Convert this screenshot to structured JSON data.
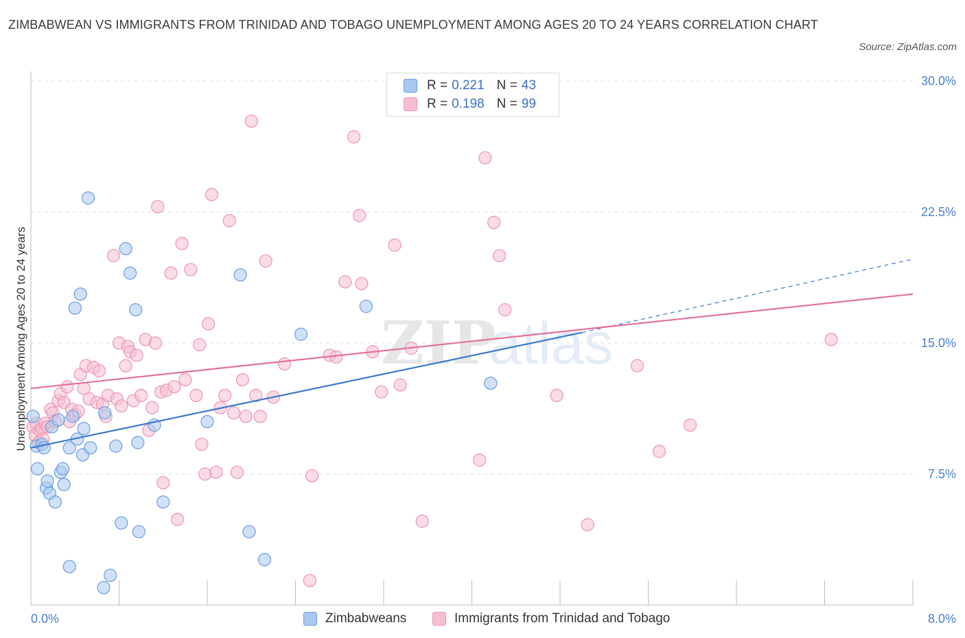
{
  "header": {
    "title": "ZIMBABWEAN VS IMMIGRANTS FROM TRINIDAD AND TOBAGO UNEMPLOYMENT AMONG AGES 20 TO 24 YEARS CORRELATION CHART",
    "source": "Source: ZipAtlas.com"
  },
  "legend": {
    "rows": [
      {
        "r_label": "R =",
        "r_value": "0.221",
        "n_label": "N =",
        "n_value": "43"
      },
      {
        "r_label": "R =",
        "r_value": "0.198",
        "n_label": "N =",
        "n_value": "99"
      }
    ],
    "bottom": [
      "Zimbabweans",
      "Immigrants from Trinidad and Tobago"
    ]
  },
  "colors": {
    "blue_fill": "#a9c8f0",
    "blue_stroke": "#6a9be0",
    "blue_line": "#3a78d0",
    "pink_fill": "#f6bfd0",
    "pink_stroke": "#ec93b2",
    "pink_line": "#e3709a",
    "accent_text": "#4a7fc8"
  },
  "chart_data": {
    "type": "scatter",
    "title": "ZIMBABWEAN VS IMMIGRANTS FROM TRINIDAD AND TOBAGO UNEMPLOYMENT AMONG AGES 20 TO 24 YEARS CORRELATION CHART",
    "xlabel": "",
    "ylabel": "Unemployment Among Ages 20 to 24 years",
    "xlim": [
      0,
      8
    ],
    "ylim": [
      0,
      30
    ],
    "x_tick_labels": [
      "0.0%",
      "8.0%"
    ],
    "y_tick_labels": [
      "7.5%",
      "15.0%",
      "22.5%",
      "30.0%"
    ],
    "y_ticks": [
      7.5,
      15,
      22.5,
      30
    ],
    "grid": true,
    "legend_placement": "top-center",
    "series": [
      {
        "name": "Zimbabweans",
        "r": 0.221,
        "n": 43,
        "trend": {
          "x0": 0,
          "y0": 9.0,
          "x1": 5.0,
          "y1": 15.6,
          "dash_to_x": 8.0,
          "dash_to_y": 19.8
        },
        "points": [
          [
            0.02,
            10.8
          ],
          [
            0.05,
            9.1
          ],
          [
            0.06,
            7.8
          ],
          [
            0.1,
            9.2
          ],
          [
            0.12,
            9.0
          ],
          [
            0.14,
            6.7
          ],
          [
            0.15,
            7.1
          ],
          [
            0.17,
            6.4
          ],
          [
            0.19,
            10.2
          ],
          [
            0.22,
            5.9
          ],
          [
            0.25,
            10.6
          ],
          [
            0.27,
            7.6
          ],
          [
            0.29,
            7.8
          ],
          [
            0.3,
            6.9
          ],
          [
            0.35,
            9.0
          ],
          [
            0.38,
            10.8
          ],
          [
            0.4,
            17.0
          ],
          [
            0.42,
            9.5
          ],
          [
            0.45,
            17.8
          ],
          [
            0.47,
            8.6
          ],
          [
            0.48,
            10.1
          ],
          [
            0.52,
            23.3
          ],
          [
            0.54,
            9.0
          ],
          [
            0.66,
            1.0
          ],
          [
            0.67,
            11.0
          ],
          [
            0.72,
            1.7
          ],
          [
            0.77,
            9.1
          ],
          [
            0.82,
            4.7
          ],
          [
            0.86,
            20.4
          ],
          [
            0.9,
            19.0
          ],
          [
            0.95,
            16.9
          ],
          [
            0.97,
            9.3
          ],
          [
            0.98,
            4.2
          ],
          [
            1.12,
            10.3
          ],
          [
            1.2,
            5.9
          ],
          [
            1.6,
            10.5
          ],
          [
            1.9,
            18.9
          ],
          [
            2.12,
            2.6
          ],
          [
            1.98,
            4.2
          ],
          [
            2.45,
            15.5
          ],
          [
            3.04,
            17.1
          ],
          [
            4.17,
            12.7
          ],
          [
            0.35,
            2.2
          ]
        ]
      },
      {
        "name": "Immigrants from Trinidad and Tobago",
        "r": 0.198,
        "n": 99,
        "trend": {
          "x0": 0,
          "y0": 12.4,
          "x1": 8.0,
          "y1": 17.8
        },
        "points": [
          [
            0.02,
            10.2
          ],
          [
            0.04,
            9.7
          ],
          [
            0.05,
            10.4
          ],
          [
            0.07,
            9.3
          ],
          [
            0.08,
            10.0
          ],
          [
            0.1,
            10.1
          ],
          [
            0.11,
            9.5
          ],
          [
            0.13,
            10.4
          ],
          [
            0.15,
            10.2
          ],
          [
            0.18,
            11.2
          ],
          [
            0.2,
            11.0
          ],
          [
            0.22,
            10.5
          ],
          [
            0.25,
            11.7
          ],
          [
            0.27,
            12.1
          ],
          [
            0.3,
            11.6
          ],
          [
            0.33,
            12.5
          ],
          [
            0.35,
            10.5
          ],
          [
            0.37,
            11.2
          ],
          [
            0.4,
            10.9
          ],
          [
            0.43,
            11.1
          ],
          [
            0.45,
            13.2
          ],
          [
            0.48,
            12.4
          ],
          [
            0.5,
            13.7
          ],
          [
            0.53,
            11.8
          ],
          [
            0.57,
            13.6
          ],
          [
            0.6,
            11.6
          ],
          [
            0.62,
            13.4
          ],
          [
            0.65,
            11.5
          ],
          [
            0.68,
            10.8
          ],
          [
            0.7,
            12.0
          ],
          [
            0.75,
            20.0
          ],
          [
            0.78,
            11.8
          ],
          [
            0.8,
            15.0
          ],
          [
            0.82,
            11.4
          ],
          [
            0.86,
            13.7
          ],
          [
            0.88,
            14.8
          ],
          [
            0.9,
            14.5
          ],
          [
            0.93,
            11.7
          ],
          [
            0.96,
            14.3
          ],
          [
            1.0,
            12.0
          ],
          [
            1.04,
            15.2
          ],
          [
            1.07,
            10.0
          ],
          [
            1.1,
            11.3
          ],
          [
            1.13,
            15.0
          ],
          [
            1.15,
            22.8
          ],
          [
            1.18,
            12.2
          ],
          [
            1.2,
            7.0
          ],
          [
            1.23,
            12.3
          ],
          [
            1.27,
            19.0
          ],
          [
            1.3,
            12.5
          ],
          [
            1.33,
            4.9
          ],
          [
            1.37,
            20.7
          ],
          [
            1.4,
            12.9
          ],
          [
            1.45,
            19.2
          ],
          [
            1.5,
            12.0
          ],
          [
            1.53,
            14.9
          ],
          [
            1.55,
            9.2
          ],
          [
            1.58,
            7.5
          ],
          [
            1.61,
            16.1
          ],
          [
            1.64,
            23.5
          ],
          [
            1.68,
            7.6
          ],
          [
            1.72,
            11.3
          ],
          [
            1.76,
            12.0
          ],
          [
            1.8,
            22.0
          ],
          [
            1.84,
            11.0
          ],
          [
            1.87,
            7.6
          ],
          [
            1.92,
            12.9
          ],
          [
            1.95,
            10.8
          ],
          [
            2.0,
            27.7
          ],
          [
            2.04,
            12.0
          ],
          [
            2.08,
            10.8
          ],
          [
            2.13,
            19.7
          ],
          [
            2.2,
            11.9
          ],
          [
            2.3,
            13.8
          ],
          [
            2.53,
            1.4
          ],
          [
            2.55,
            7.4
          ],
          [
            2.71,
            14.3
          ],
          [
            2.77,
            14.2
          ],
          [
            2.85,
            18.5
          ],
          [
            2.93,
            26.8
          ],
          [
            2.98,
            22.3
          ],
          [
            3.0,
            18.4
          ],
          [
            3.1,
            14.5
          ],
          [
            3.18,
            12.2
          ],
          [
            3.3,
            20.6
          ],
          [
            3.35,
            12.6
          ],
          [
            3.45,
            14.7
          ],
          [
            3.55,
            4.8
          ],
          [
            4.07,
            8.3
          ],
          [
            4.12,
            25.6
          ],
          [
            4.2,
            21.9
          ],
          [
            4.25,
            20.0
          ],
          [
            4.3,
            16.9
          ],
          [
            4.77,
            12.0
          ],
          [
            5.05,
            4.6
          ],
          [
            5.5,
            13.7
          ],
          [
            5.7,
            8.8
          ],
          [
            5.98,
            10.3
          ],
          [
            7.26,
            15.2
          ]
        ]
      }
    ]
  }
}
